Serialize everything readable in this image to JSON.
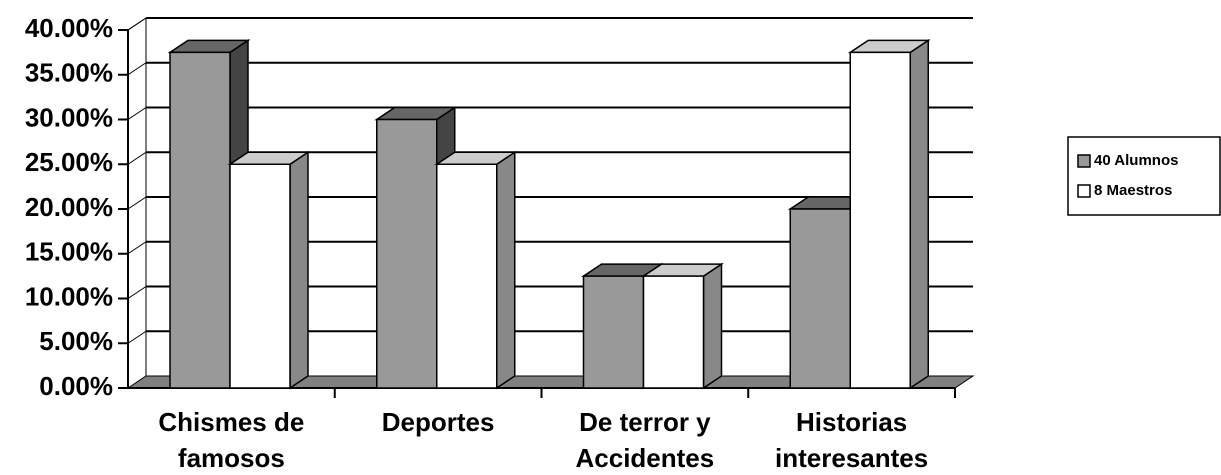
{
  "chart_data": {
    "type": "bar3d",
    "categories": [
      "Chismes de famosos",
      "Deportes",
      "De terror y Accidentes",
      "Historias interesantes"
    ],
    "series": [
      {
        "name": "40 Alumnos",
        "color": "#999999",
        "values": [
          37.5,
          30,
          12.5,
          20
        ]
      },
      {
        "name": "8 Maestros",
        "color": "#ffffff",
        "values": [
          25,
          25,
          12.5,
          37.5
        ]
      }
    ],
    "ylim": [
      0,
      40
    ],
    "yticks": [
      {
        "value": 0,
        "label": "0.00%"
      },
      {
        "value": 5,
        "label": "5.00%"
      },
      {
        "value": 10,
        "label": "10.00%"
      },
      {
        "value": 15,
        "label": "15.00%"
      },
      {
        "value": 20,
        "label": "20.00%"
      },
      {
        "value": 25,
        "label": "25.00%"
      },
      {
        "value": 30,
        "label": "30.00%"
      },
      {
        "value": 35,
        "label": "35.00%"
      },
      {
        "value": 40,
        "label": "40.00%"
      }
    ],
    "grid": true,
    "legend": "right"
  }
}
